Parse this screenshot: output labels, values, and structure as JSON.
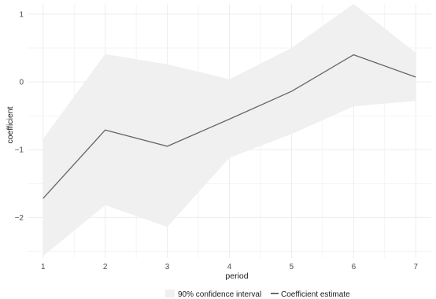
{
  "chart_data": {
    "type": "line",
    "title": "",
    "xlabel": "period",
    "ylabel": "coefficient",
    "x": [
      1,
      2,
      3,
      4,
      5,
      6,
      7
    ],
    "x_ticks": [
      "1",
      "2",
      "3",
      "4",
      "5",
      "6",
      "7"
    ],
    "y_ticks": [
      {
        "value": -2,
        "label": "−2"
      },
      {
        "value": -1,
        "label": "−1"
      },
      {
        "value": 0,
        "label": "0"
      },
      {
        "value": 1,
        "label": "1"
      }
    ],
    "xlim": [
      0.75,
      7.25
    ],
    "ylim": [
      -2.6,
      1.15
    ],
    "grid": true,
    "series": [
      {
        "name": "Coefficient estimate",
        "values": [
          -1.72,
          -0.71,
          -0.95,
          -0.55,
          -0.14,
          0.4,
          0.07
        ],
        "color": "#666666"
      }
    ],
    "confidence_band": {
      "name": "90% confidence interval",
      "lower": [
        -2.57,
        -1.82,
        -2.14,
        -1.12,
        -0.77,
        -0.36,
        -0.28
      ],
      "upper": [
        -0.84,
        0.41,
        0.26,
        0.04,
        0.5,
        1.15,
        0.43
      ],
      "color": "#f0f0f0"
    },
    "legend": {
      "position": "bottom",
      "band_label": "90% confidence interval",
      "line_label": "Coefficient estimate"
    },
    "colors": {
      "band": "#f0f0f0",
      "line": "#666666",
      "grid": "#ebebeb",
      "text": "#4d4d4d"
    }
  }
}
